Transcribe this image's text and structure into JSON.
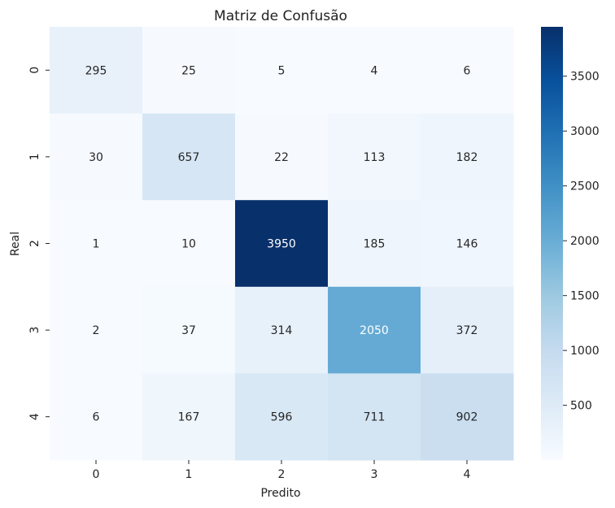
{
  "chart_data": {
    "type": "heatmap",
    "title": "Matriz de Confusão",
    "xlabel": "Predito",
    "ylabel": "Real",
    "x_categories": [
      "0",
      "1",
      "2",
      "3",
      "4"
    ],
    "y_categories": [
      "0",
      "1",
      "2",
      "3",
      "4"
    ],
    "values": [
      [
        295,
        25,
        5,
        4,
        6
      ],
      [
        30,
        657,
        22,
        113,
        182
      ],
      [
        1,
        10,
        3950,
        185,
        146
      ],
      [
        2,
        37,
        314,
        2050,
        372
      ],
      [
        6,
        167,
        596,
        711,
        902
      ]
    ],
    "colormap": "Blues",
    "colorbar": {
      "range": [
        1,
        3950
      ],
      "ticks": [
        500,
        1000,
        1500,
        2000,
        2500,
        3000,
        3500
      ]
    },
    "colors": {
      "low": "#f7fbff",
      "high": "#08306b"
    }
  }
}
